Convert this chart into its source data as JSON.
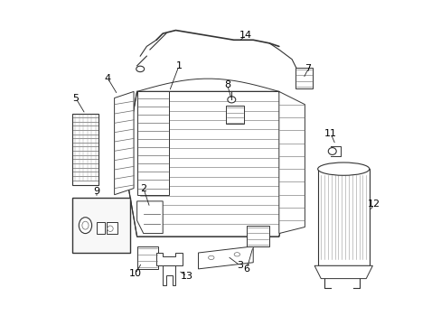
{
  "title": "",
  "background_color": "#ffffff",
  "figsize": [
    4.89,
    3.6
  ],
  "dpi": 100,
  "label_fontsize": 8,
  "label_color": "#000000",
  "line_color": "#333333",
  "component_color": "#444444"
}
